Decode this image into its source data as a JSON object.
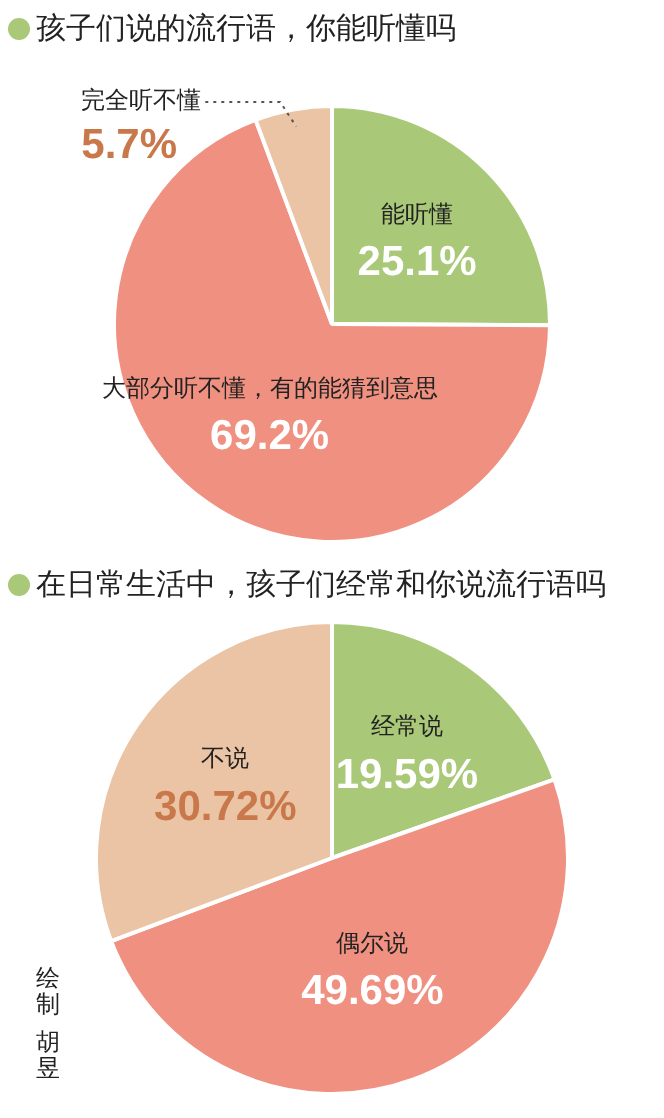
{
  "chart_data": [
    {
      "type": "pie",
      "title": "孩子们说的流行语，你能听懂吗",
      "categories": [
        "能听懂",
        "大部分听不懂，有的能猜到意思",
        "完全听不懂"
      ],
      "values": [
        25.1,
        69.2,
        5.7
      ],
      "colors": [
        "#a9c878",
        "#ef9080",
        "#eac4a4"
      ],
      "value_labels": [
        "25.1%",
        "69.2%",
        "5.7%"
      ]
    },
    {
      "type": "pie",
      "title": "在日常生活中，孩子们经常和你说流行语吗",
      "categories": [
        "经常说",
        "偶尔说",
        "不说"
      ],
      "values": [
        19.59,
        49.69,
        30.72
      ],
      "colors": [
        "#a9c878",
        "#ef9080",
        "#eac4a4"
      ],
      "value_labels": [
        "19.59%",
        "49.69%",
        "30.72%"
      ],
      "annotations": [
        "绘制",
        "胡昱"
      ]
    }
  ]
}
